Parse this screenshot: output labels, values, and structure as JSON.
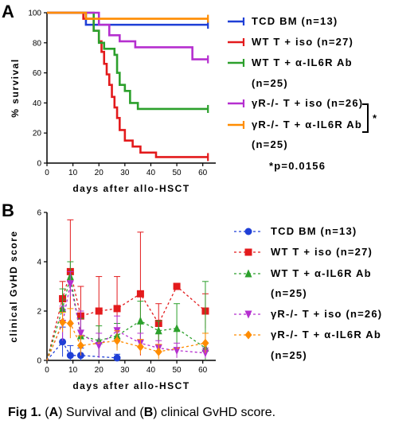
{
  "panel_a_letter": "A",
  "panel_b_letter": "B",
  "pvalue_note": "*p=0.0156",
  "star_note": "*",
  "caption": {
    "prefix": "Fig 1.",
    "p1": " (",
    "a": "A",
    "p2": ") Survival and (",
    "b": "B",
    "p3": ") clinical GvHD score."
  },
  "chart_data": [
    {
      "type": "line",
      "subtype": "kaplan-meier",
      "xlabel": "days after allo-HSCT",
      "ylabel": "% survival",
      "xlim": [
        0,
        65
      ],
      "ylim": [
        0,
        100
      ],
      "xticks": [
        0,
        10,
        20,
        30,
        40,
        50,
        60
      ],
      "yticks": [
        0,
        20,
        40,
        60,
        80,
        100
      ],
      "grid": false,
      "legend": "right",
      "series": [
        {
          "name": "TCD BM (n=13)",
          "color": "#1f3fd6",
          "x": [
            0,
            15,
            15,
            62
          ],
          "y": [
            100,
            100,
            92,
            92
          ]
        },
        {
          "name": "WT T + iso (n=27)",
          "color": "#e31a1c",
          "x": [
            0,
            14,
            14,
            18,
            18,
            20,
            20,
            21,
            21,
            22,
            22,
            23,
            23,
            24,
            24,
            25,
            25,
            26,
            26,
            27,
            27,
            28,
            28,
            30,
            30,
            33,
            33,
            36,
            36,
            42,
            42,
            62
          ],
          "y": [
            100,
            100,
            96,
            96,
            88,
            88,
            81,
            81,
            74,
            74,
            66,
            66,
            59,
            59,
            52,
            52,
            44,
            44,
            37,
            37,
            30,
            30,
            22,
            22,
            15,
            15,
            11,
            11,
            7,
            7,
            4,
            4
          ]
        },
        {
          "name": "WT T + α-IL6R Ab (n=25)",
          "color": "#2ca02c",
          "x": [
            0,
            18,
            18,
            20,
            20,
            22,
            22,
            26,
            26,
            27,
            27,
            28,
            28,
            30,
            30,
            32,
            32,
            35,
            35,
            62
          ],
          "y": [
            100,
            100,
            88,
            88,
            80,
            80,
            76,
            76,
            72,
            72,
            60,
            60,
            52,
            52,
            48,
            48,
            40,
            40,
            36,
            36
          ]
        },
        {
          "name": "γR-/- T + iso (n=26)",
          "color": "#b52fcf",
          "x": [
            0,
            20,
            20,
            24,
            24,
            28,
            28,
            34,
            34,
            56,
            56,
            62
          ],
          "y": [
            100,
            100,
            92,
            92,
            85,
            85,
            81,
            81,
            77,
            77,
            69,
            69
          ]
        },
        {
          "name": "γR-/- T + α-IL6R Ab (n=25)",
          "color": "#ff8c00",
          "x": [
            0,
            15,
            15,
            62
          ],
          "y": [
            100,
            100,
            96,
            96
          ]
        }
      ]
    },
    {
      "type": "line",
      "subtype": "errorbar",
      "xlabel": "days after allo-HSCT",
      "ylabel": "clinical GvHD score",
      "xlim": [
        0,
        65
      ],
      "ylim": [
        0,
        6
      ],
      "xticks": [
        0,
        10,
        20,
        30,
        40,
        50,
        60
      ],
      "yticks": [
        0,
        2,
        4,
        6
      ],
      "grid": false,
      "legend": "right",
      "series": [
        {
          "name": "TCD BM (n=13)",
          "color": "#1f3fd6",
          "marker": "circle",
          "x": [
            0,
            6,
            9,
            13,
            27
          ],
          "y": [
            0,
            0.75,
            0.2,
            0.2,
            0.1
          ],
          "err": [
            0,
            0.6,
            0.4,
            0.3,
            0.15
          ]
        },
        {
          "name": "WT T + iso (n=27)",
          "color": "#e31a1c",
          "marker": "square",
          "x": [
            0,
            6,
            9,
            13,
            20,
            27,
            36,
            43,
            50,
            61
          ],
          "y": [
            0,
            2.5,
            3.6,
            1.8,
            2.0,
            2.1,
            2.7,
            1.5,
            3.0,
            2.0
          ],
          "err": [
            0,
            0.7,
            2.1,
            1.2,
            1.4,
            1.3,
            2.5,
            0.8,
            0,
            0.7
          ]
        },
        {
          "name": "WT T + α-IL6R Ab (n=25)",
          "color": "#2ca02c",
          "marker": "triangle-up",
          "x": [
            0,
            6,
            9,
            13,
            20,
            27,
            36,
            43,
            50,
            61
          ],
          "y": [
            0,
            2.1,
            3.4,
            1.0,
            0.8,
            1.0,
            1.6,
            1.2,
            1.3,
            0.5
          ],
          "err": [
            0,
            0.8,
            0.6,
            0.7,
            0.6,
            0.5,
            0.8,
            0.4,
            1.0,
            2.7
          ]
        },
        {
          "name": "γR-/- T + iso (n=26)",
          "color": "#b52fcf",
          "marker": "triangle-down",
          "x": [
            0,
            6,
            9,
            13,
            20,
            27,
            36,
            43,
            50,
            61
          ],
          "y": [
            0,
            1.5,
            3.1,
            1.1,
            0.6,
            1.2,
            0.7,
            0.5,
            0.4,
            0.3
          ],
          "err": [
            0,
            0.7,
            0.5,
            0.9,
            0.5,
            0.6,
            0.4,
            0.3,
            0.3,
            0.2
          ]
        },
        {
          "name": "γR-/- T + α-IL6R Ab (n=25)",
          "color": "#ff8c00",
          "marker": "diamond",
          "x": [
            0,
            6,
            9,
            13,
            27,
            36,
            43,
            61
          ],
          "y": [
            0,
            1.55,
            1.5,
            0.6,
            0.8,
            0.55,
            0.35,
            0.7
          ],
          "err": [
            0,
            0.4,
            0.6,
            0.4,
            0.4,
            0.3,
            0.3,
            0.4
          ]
        }
      ]
    }
  ]
}
